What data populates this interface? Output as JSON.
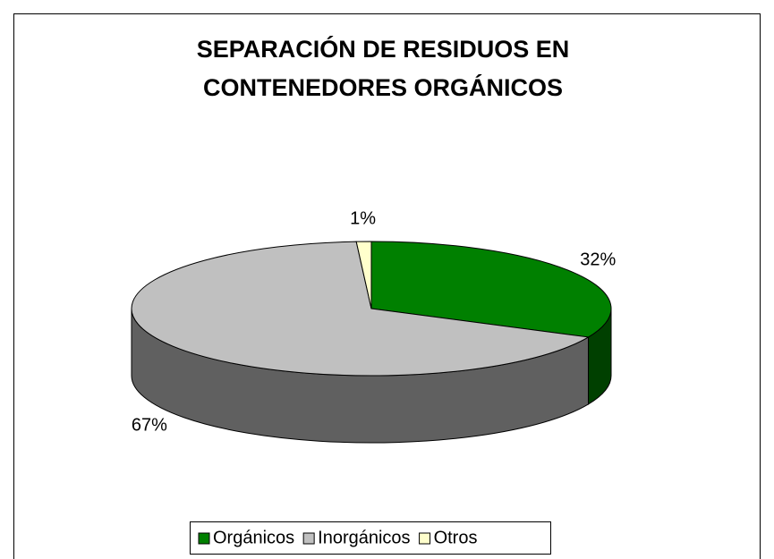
{
  "chart_data": {
    "type": "pie3d",
    "title": [
      "SEPARACIÓN DE RESIDUOS EN",
      "CONTENEDORES ORGÁNICOS"
    ],
    "categories": [
      "Orgánicos",
      "Inorgánicos",
      "Otros"
    ],
    "values": [
      32,
      67,
      1
    ],
    "value_labels": [
      "32%",
      "67%",
      "1%"
    ],
    "colors": [
      "#008000",
      "#c0c0c0",
      "#ffffcc"
    ],
    "side_colors": [
      "#004000",
      "#606060",
      "#808066"
    ],
    "legend": "bottom"
  }
}
